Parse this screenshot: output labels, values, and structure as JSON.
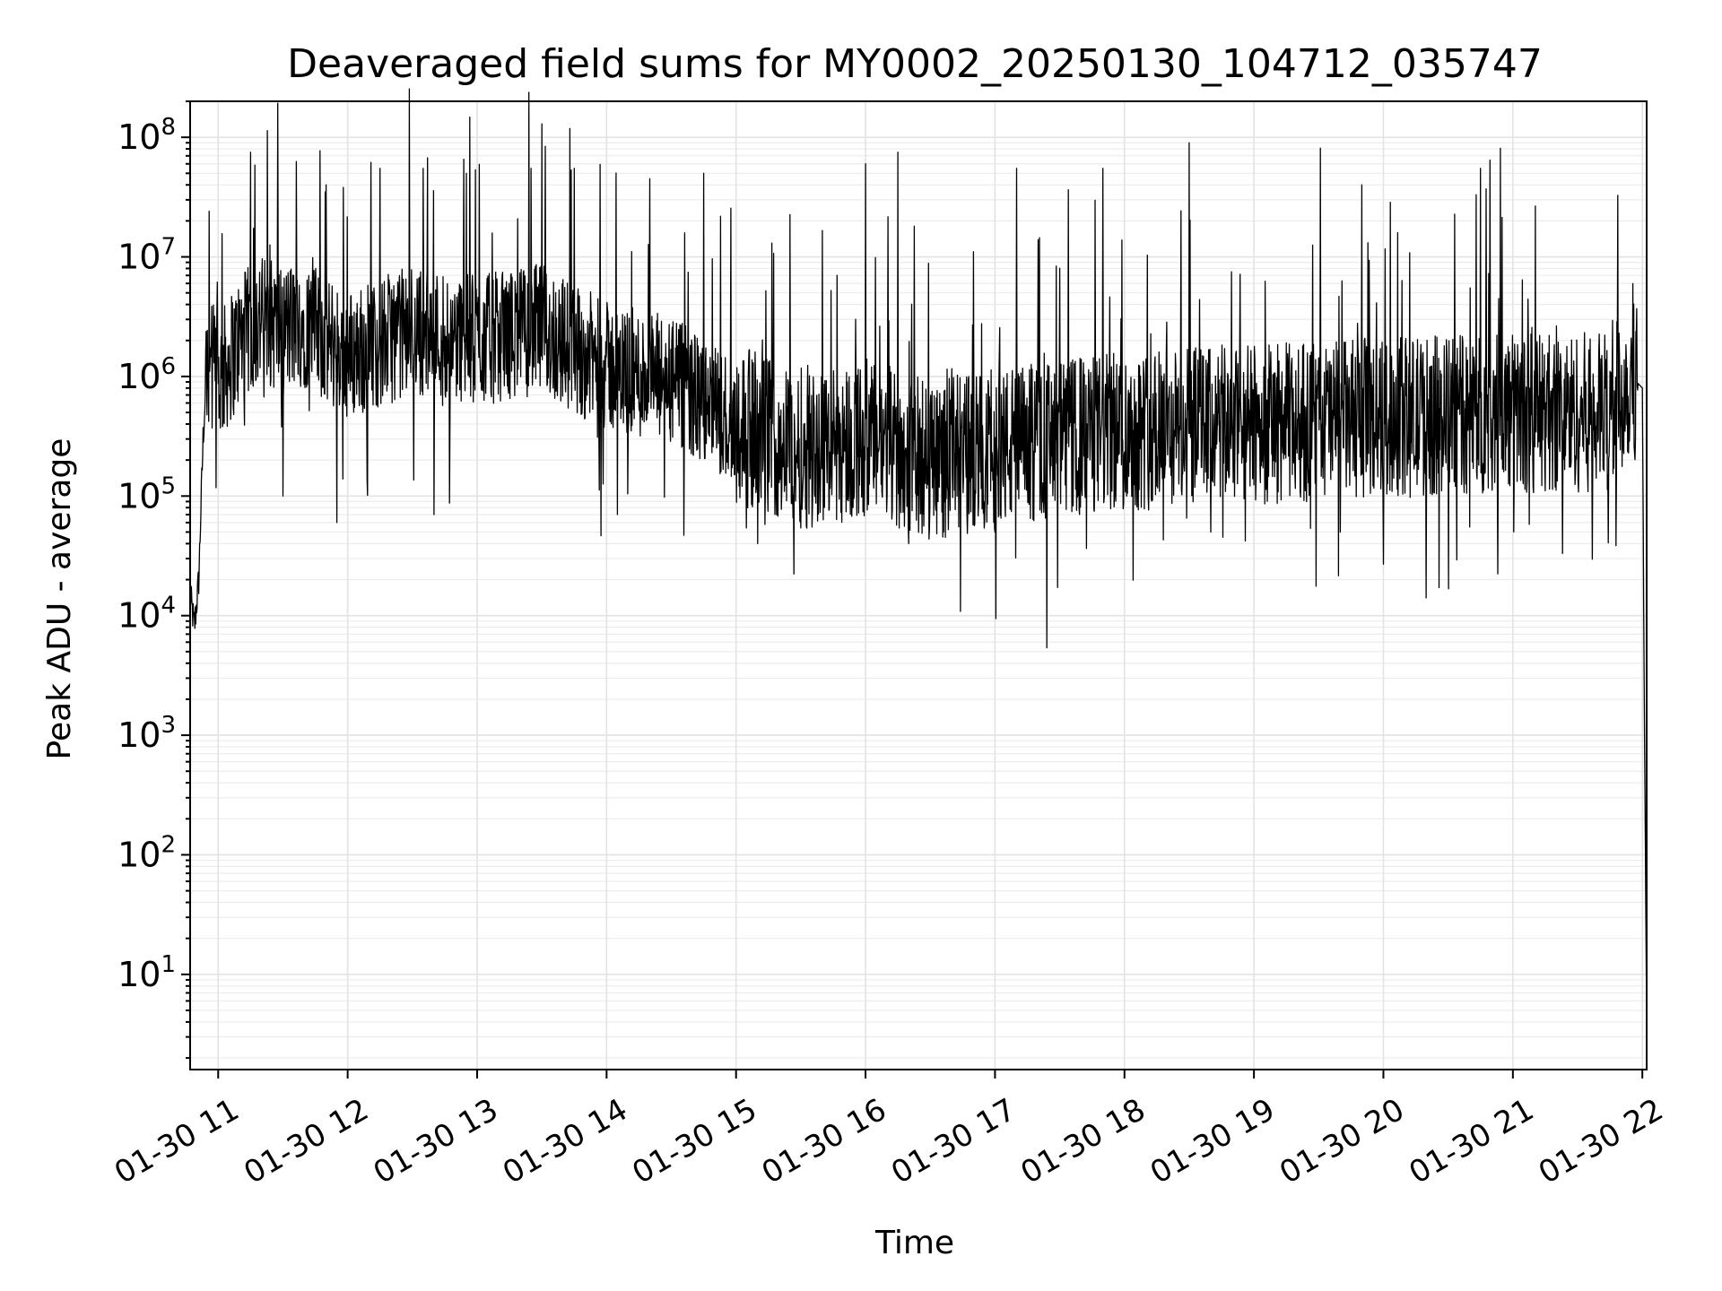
{
  "chart_data": {
    "type": "line",
    "title": "Deaveraged field sums for MY0002_20250130_104712_035747",
    "xlabel": "Time",
    "ylabel": "Peak ADU - average",
    "yscale": "log",
    "ylim": [
      1.6,
      200000000
    ],
    "xlim": [
      "2025-01-30 10:47",
      "2025-01-30 22:02"
    ],
    "grid": true,
    "line_color": "#000000",
    "x_ticks": [
      {
        "label": "01-30 11",
        "time": "2025-01-30 11:00"
      },
      {
        "label": "01-30 12",
        "time": "2025-01-30 12:00"
      },
      {
        "label": "01-30 13",
        "time": "2025-01-30 13:00"
      },
      {
        "label": "01-30 14",
        "time": "2025-01-30 14:00"
      },
      {
        "label": "01-30 15",
        "time": "2025-01-30 15:00"
      },
      {
        "label": "01-30 16",
        "time": "2025-01-30 16:00"
      },
      {
        "label": "01-30 17",
        "time": "2025-01-30 17:00"
      },
      {
        "label": "01-30 18",
        "time": "2025-01-30 18:00"
      },
      {
        "label": "01-30 19",
        "time": "2025-01-30 19:00"
      },
      {
        "label": "01-30 20",
        "time": "2025-01-30 20:00"
      },
      {
        "label": "01-30 21",
        "time": "2025-01-30 21:00"
      },
      {
        "label": "01-30 22",
        "time": "2025-01-30 22:00"
      }
    ],
    "y_ticks": [
      {
        "base": "10",
        "exp": "1",
        "value": 10
      },
      {
        "base": "10",
        "exp": "2",
        "value": 100
      },
      {
        "base": "10",
        "exp": "3",
        "value": 1000
      },
      {
        "base": "10",
        "exp": "4",
        "value": 10000
      },
      {
        "base": "10",
        "exp": "5",
        "value": 100000
      },
      {
        "base": "10",
        "exp": "6",
        "value": 1000000
      },
      {
        "base": "10",
        "exp": "7",
        "value": 10000000
      },
      {
        "base": "10",
        "exp": "8",
        "value": 100000000
      }
    ],
    "series": [
      {
        "points": [
          {
            "t": "2025-01-30 10:47",
            "y": 15000
          },
          {
            "t": "2025-01-30 10:49",
            "y": 8000
          },
          {
            "t": "2025-01-30 10:51",
            "y": 20000
          },
          {
            "t": "2025-01-30 10:53",
            "y": 300000
          },
          {
            "t": "2025-01-30 10:55",
            "y": 1500000
          },
          {
            "t": "2025-01-30 11:00",
            "y": 900000
          },
          {
            "t": "2025-01-30 11:10",
            "y": 2000000
          },
          {
            "t": "2025-01-30 11:20",
            "y": 3000000
          },
          {
            "t": "2025-01-30 11:30",
            "y": 2500000
          },
          {
            "t": "2025-01-30 11:40",
            "y": 2800000
          },
          {
            "t": "2025-01-30 12:00",
            "y": 1500000
          },
          {
            "t": "2025-01-30 12:30",
            "y": 2500000
          },
          {
            "t": "2025-01-30 13:00",
            "y": 2000000
          },
          {
            "t": "2025-01-30 13:30",
            "y": 2500000
          },
          {
            "t": "2025-01-30 14:00",
            "y": 1200000
          },
          {
            "t": "2025-01-30 14:30",
            "y": 900000
          },
          {
            "t": "2025-01-30 15:00",
            "y": 400000
          },
          {
            "t": "2025-01-30 15:30",
            "y": 250000
          },
          {
            "t": "2025-01-30 16:00",
            "y": 300000
          },
          {
            "t": "2025-01-30 16:30",
            "y": 200000
          },
          {
            "t": "2025-01-30 17:00",
            "y": 250000
          },
          {
            "t": "2025-01-30 18:00",
            "y": 350000
          },
          {
            "t": "2025-01-30 19:00",
            "y": 400000
          },
          {
            "t": "2025-01-30 20:00",
            "y": 450000
          },
          {
            "t": "2025-01-30 21:00",
            "y": 500000
          },
          {
            "t": "2025-01-30 21:45",
            "y": 500000
          },
          {
            "t": "2025-01-30 21:55",
            "y": 1000000
          },
          {
            "t": "2025-01-30 22:00",
            "y": 800000
          },
          {
            "t": "2025-01-30 22:01",
            "y": 1000
          },
          {
            "t": "2025-01-30 22:02",
            "y": 4
          }
        ],
        "spikes": [
          {
            "t": "2025-01-30 11:15",
            "y": 75000000
          },
          {
            "t": "2025-01-30 11:50",
            "y": 40000000
          },
          {
            "t": "2025-01-30 12:15",
            "y": 55000000
          },
          {
            "t": "2025-01-30 12:35",
            "y": 55000000
          },
          {
            "t": "2025-01-30 12:55",
            "y": 50000000
          },
          {
            "t": "2025-01-30 13:25",
            "y": 55000000
          },
          {
            "t": "2025-01-30 13:45",
            "y": 55000000
          },
          {
            "t": "2025-01-30 14:20",
            "y": 45000000
          },
          {
            "t": "2025-01-30 14:45",
            "y": 50000000
          },
          {
            "t": "2025-01-30 16:00",
            "y": 60000000
          },
          {
            "t": "2025-01-30 16:15",
            "y": 75000000
          },
          {
            "t": "2025-01-30 17:10",
            "y": 55000000
          },
          {
            "t": "2025-01-30 17:50",
            "y": 55000000
          },
          {
            "t": "2025-01-30 18:30",
            "y": 90000000
          },
          {
            "t": "2025-01-30 19:50",
            "y": 40000000
          },
          {
            "t": "2025-01-30 20:45",
            "y": 55000000
          }
        ],
        "dips": [
          {
            "t": "2025-01-30 11:30",
            "y": 100000
          },
          {
            "t": "2025-01-30 11:55",
            "y": 60000
          },
          {
            "t": "2025-01-30 12:40",
            "y": 70000
          },
          {
            "t": "2025-01-30 14:05",
            "y": 70000
          },
          {
            "t": "2025-01-30 15:10",
            "y": 40000
          },
          {
            "t": "2025-01-30 16:20",
            "y": 40000
          },
          {
            "t": "2025-01-30 17:00",
            "y": 50000
          },
          {
            "t": "2025-01-30 18:40",
            "y": 50000
          },
          {
            "t": "2025-01-30 19:40",
            "y": 50000
          },
          {
            "t": "2025-01-30 20:40",
            "y": 55000
          }
        ]
      }
    ]
  }
}
